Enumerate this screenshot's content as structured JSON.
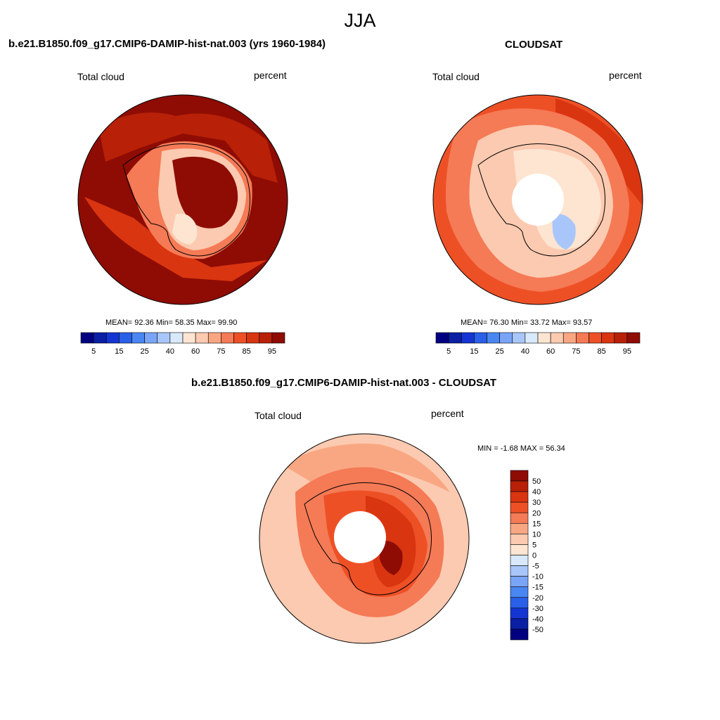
{
  "figure_title": "JJA",
  "colors": {
    "full": [
      "#000080",
      "#0a1fa3",
      "#1535d2",
      "#2a5fe8",
      "#4a86f2",
      "#7aa5f7",
      "#a9c6fa",
      "#d9e9fc",
      "#fde5d1",
      "#fccab0",
      "#f9a783",
      "#f57a56",
      "#ee5026",
      "#d93510",
      "#b82008",
      "#8e0c04"
    ],
    "diff": [
      "#000080",
      "#0a1fa3",
      "#1535d2",
      "#2a5fe8",
      "#4a86f2",
      "#7aa5f7",
      "#a9c6fa",
      "#d9e9fc",
      "#fde5d1",
      "#fccab0",
      "#f9a783",
      "#f57a56",
      "#ee5026",
      "#d93510",
      "#b82008",
      "#8e0c04"
    ]
  },
  "panels": [
    {
      "title": "b.e21.B1850.f09_g17.CMIP6-DAMIP-hist-nat.003 (yrs 1960-1984)",
      "left_label": "Total cloud",
      "right_label": "percent",
      "stats": "MEAN=  92.36  Min=  58.35  Max=  99.90",
      "colorbar_labels": [
        "5",
        "15",
        "25",
        "40",
        "60",
        "75",
        "85",
        "95"
      ]
    },
    {
      "title": "CLOUDSAT",
      "left_label": "Total cloud",
      "right_label": "percent",
      "stats": "MEAN=  76.30  Min=  33.72  Max=  93.57",
      "colorbar_labels": [
        "5",
        "15",
        "25",
        "40",
        "60",
        "75",
        "85",
        "95"
      ]
    },
    {
      "title": "b.e21.B1850.f09_g17.CMIP6-DAMIP-hist-nat.003 - CLOUDSAT",
      "left_label": "Total cloud",
      "right_label": "percent",
      "stats": "MIN =  -1.68 MAX =  56.34",
      "colorbar_labels": [
        "50",
        "40",
        "30",
        "20",
        "15",
        "10",
        "5",
        "0",
        "-5",
        "-10",
        "-15",
        "-20",
        "-30",
        "-40",
        "-50"
      ]
    }
  ]
}
